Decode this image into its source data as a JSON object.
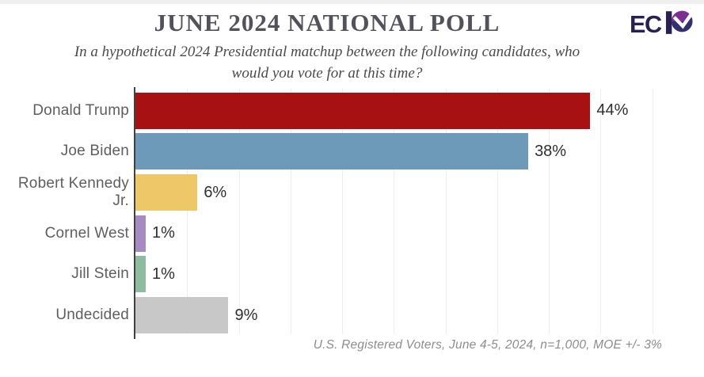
{
  "header": {
    "title": "JUNE 2024 NATIONAL POLL",
    "subtitle_line1": "In a hypothetical 2024 Presidential matchup between the following candidates, who",
    "subtitle_line2": "would you vote for at this time?",
    "logo": {
      "letters": "EC",
      "stylized_letter": "P",
      "color_dark": "#2a1f52",
      "color_purple": "#7c2d92",
      "color_navy": "#33306f"
    }
  },
  "chart_data": {
    "type": "bar",
    "orientation": "horizontal",
    "title": "JUNE 2024 NATIONAL POLL",
    "xlabel": "",
    "ylabel": "",
    "grid": true,
    "gridline_step": 5,
    "xlim": [
      0,
      55
    ],
    "categories": [
      "Donald Trump",
      "Joe Biden",
      "Robert Kennedy Jr.",
      "Cornel West",
      "Jill Stein",
      "Undecided"
    ],
    "values": [
      44,
      38,
      6,
      1,
      1,
      9
    ],
    "value_labels": [
      "44%",
      "38%",
      "6%",
      "1%",
      "1%",
      "9%"
    ],
    "colors": [
      "#a81112",
      "#6e9aba",
      "#edc768",
      "#a58bc2",
      "#8ebc9e",
      "#c8c8c8"
    ]
  },
  "footer": {
    "note": "U.S. Registered Voters, June 4-5, 2024, n=1,000, MOE +/- 3%"
  }
}
